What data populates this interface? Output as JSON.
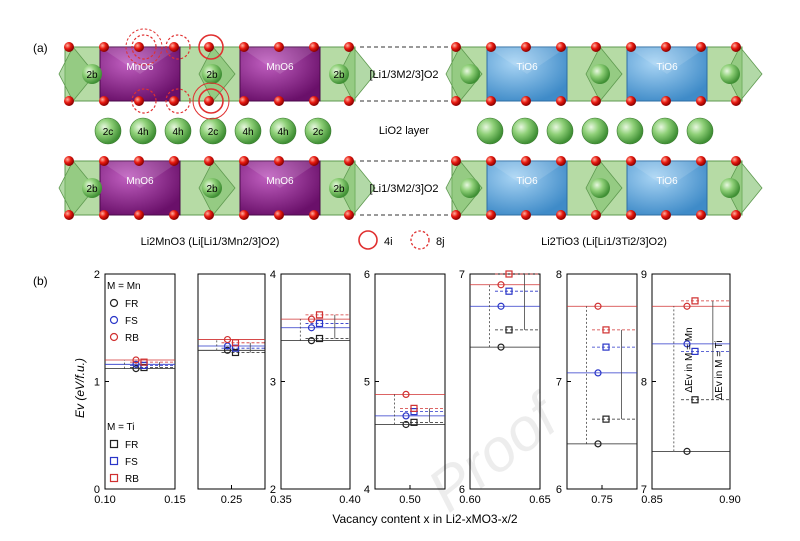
{
  "panel_a": {
    "tag": "(a)",
    "left_label": "Li2MnO3 (Li[Li1/3Mn2/3]O2)",
    "right_label": "Li2TiO3 (Li[Li1/3Ti2/3]O2)",
    "layer_top": "[Li1/3M2/3]O2",
    "layer_mid": "LiO2 layer",
    "layer_bottom": "[Li1/3M2/3]O2",
    "octa_mn": "MnO6",
    "octa_ti": "TiO6",
    "site_2b": "2b",
    "li_sites": [
      "2c",
      "4h",
      "4h",
      "2c",
      "4h",
      "4h",
      "2c"
    ],
    "legend_4i": "4i",
    "legend_8j": "8j",
    "colors": {
      "mn": "#8a1f8a",
      "ti": "#5aa0d6",
      "li": "#6fbf5a",
      "o": "#e01010",
      "green_poly": "#9fd08a"
    }
  },
  "panel_b": {
    "tag": "(b)",
    "ylabel": "Ev (eV/f.u.)",
    "xlabel": "Vacancy content x in Li2-xMO3-x/2",
    "legend_mn_title": "M = Mn",
    "legend_ti_title": "M = Ti",
    "legend_items": [
      "FR",
      "FS",
      "RB"
    ],
    "arrow_mn": "ΔEv in M = Mn",
    "arrow_ti": "ΔEv in M = Ti",
    "watermark": "Proof"
  },
  "chart_data": {
    "type": "scatter",
    "xlabel": "Vacancy content x in Li2-xMO3-x/2",
    "ylabel": "Ev (eV/f.u.)",
    "series_names": [
      "FR",
      "FS",
      "RB"
    ],
    "colors": {
      "FR": "#222222",
      "FS": "#2a36c8",
      "RB": "#d03030"
    },
    "subplots": [
      {
        "xlim": [
          0.1,
          0.15
        ],
        "xticks": [
          "0.10",
          "0.15"
        ],
        "ylim": [
          0,
          2
        ],
        "yticks": [
          "0",
          "1",
          "2"
        ],
        "x": 0.125,
        "mn": {
          "FR": 1.12,
          "FS": 1.16,
          "RB": 1.2
        },
        "ti": {
          "FR": 1.13,
          "FS": 1.15,
          "RB": 1.18
        }
      },
      {
        "xlim": [
          0.2,
          0.3
        ],
        "xticks": [
          "0.25"
        ],
        "ylim": [
          0,
          2
        ],
        "yticks": [],
        "x": 0.25,
        "mn": {
          "FR": 1.29,
          "FS": 1.33,
          "RB": 1.39
        },
        "ti": {
          "FR": 1.27,
          "FS": 1.31,
          "RB": 1.36
        }
      },
      {
        "xlim": [
          0.35,
          0.4
        ],
        "xticks": [
          "0.35",
          "0.40"
        ],
        "ylim": [
          2,
          4
        ],
        "yticks": [
          "2",
          "3",
          "4"
        ],
        "x": 0.375,
        "mn": {
          "FR": 3.38,
          "FS": 3.5,
          "RB": 3.58
        },
        "ti": {
          "FR": 3.4,
          "FS": 3.54,
          "RB": 3.62
        }
      },
      {
        "xlim": [
          0.45,
          0.55
        ],
        "xticks": [
          "0.50"
        ],
        "ylim": [
          4,
          6
        ],
        "yticks": [
          "4",
          "5",
          "6"
        ],
        "x": 0.5,
        "mn": {
          "FR": 4.6,
          "FS": 4.68,
          "RB": 4.88
        },
        "ti": {
          "FR": 4.62,
          "FS": 4.72,
          "RB": 4.75
        }
      },
      {
        "xlim": [
          0.6,
          0.65
        ],
        "xticks": [
          "0.60",
          "0.65"
        ],
        "ylim": [
          6,
          7
        ],
        "yticks": [
          "6",
          "7"
        ],
        "x": 0.625,
        "mn": {
          "FR": 6.66,
          "FS": 6.85,
          "RB": 6.95
        },
        "ti": {
          "FR": 6.74,
          "FS": 6.92,
          "RB": 7.0
        }
      },
      {
        "xlim": [
          0.7,
          0.8
        ],
        "xticks": [
          "0.75"
        ],
        "ylim": [
          6,
          8
        ],
        "yticks": [
          "6",
          "7",
          "8"
        ],
        "x": 0.75,
        "mn": {
          "FR": 6.42,
          "FS": 7.08,
          "RB": 7.7
        },
        "ti": {
          "FR": 6.65,
          "FS": 7.32,
          "RB": 7.48
        }
      },
      {
        "xlim": [
          0.85,
          0.9
        ],
        "xticks": [
          "0.85",
          "0.90"
        ],
        "ylim": [
          7,
          9
        ],
        "yticks": [
          "7",
          "8",
          "9"
        ],
        "x": 0.875,
        "mn": {
          "FR": 7.35,
          "FS": 8.35,
          "RB": 8.7
        },
        "ti": {
          "FR": 7.83,
          "FS": 8.28,
          "RB": 8.75
        }
      }
    ]
  }
}
